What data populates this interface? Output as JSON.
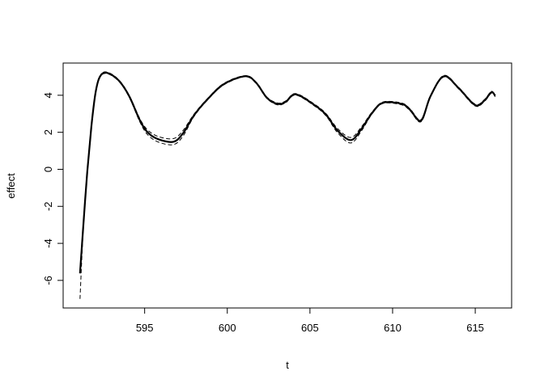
{
  "chart_data": {
    "type": "line",
    "title": "",
    "xlabel": "t",
    "ylabel": "effect",
    "xlim": [
      590.07,
      617.2
    ],
    "ylim": [
      -7.49,
      5.74
    ],
    "xticks": [
      595,
      600,
      605,
      610,
      615
    ],
    "yticks": [
      -6,
      -4,
      -2,
      0,
      2,
      4
    ],
    "grid": false,
    "legend": "none",
    "x": [
      591.09,
      591.29,
      591.53,
      591.78,
      592.02,
      592.27,
      592.68,
      593.42,
      594.07,
      594.72,
      595.21,
      595.87,
      596.76,
      597.34,
      597.99,
      598.81,
      599.79,
      601.09,
      601.75,
      602.4,
      603.05,
      603.54,
      604.15,
      605.34,
      606.0,
      606.65,
      607.47,
      608.12,
      608.77,
      609.43,
      610.56,
      611.06,
      611.72,
      612.29,
      613.1,
      614.0,
      614.99,
      615.56,
      615.97,
      616.21
    ],
    "series": [
      {
        "role": "fit",
        "style": "solid",
        "values": [
          -5.62,
          -3.06,
          -0.13,
          2.33,
          4.08,
          4.96,
          5.22,
          4.81,
          3.94,
          2.63,
          1.97,
          1.61,
          1.49,
          1.97,
          2.92,
          3.79,
          4.6,
          5.03,
          4.67,
          3.86,
          3.53,
          3.65,
          4.05,
          3.43,
          2.92,
          2.11,
          1.58,
          2.19,
          3.06,
          3.6,
          3.53,
          3.21,
          2.63,
          3.94,
          5.03,
          4.38,
          3.47,
          3.72,
          4.16,
          3.97
        ]
      },
      {
        "role": "upper",
        "style": "dashed",
        "values": [
          -5.45,
          -2.95,
          -0.05,
          2.4,
          4.13,
          5.0,
          5.26,
          4.85,
          3.99,
          2.72,
          2.1,
          1.76,
          1.66,
          2.12,
          2.98,
          3.83,
          4.64,
          5.06,
          4.71,
          3.9,
          3.58,
          3.7,
          4.09,
          3.48,
          2.98,
          2.22,
          1.72,
          2.3,
          3.11,
          3.64,
          3.58,
          3.26,
          2.69,
          3.98,
          5.07,
          4.42,
          3.52,
          3.77,
          4.21,
          4.02
        ]
      },
      {
        "role": "lower",
        "style": "dashed",
        "values": [
          -7.0,
          -3.2,
          -0.22,
          2.26,
          4.03,
          4.92,
          5.18,
          4.77,
          3.89,
          2.54,
          1.84,
          1.46,
          1.34,
          1.82,
          2.86,
          3.75,
          4.56,
          5.0,
          4.63,
          3.82,
          3.48,
          3.6,
          4.01,
          3.38,
          2.86,
          2.0,
          1.42,
          2.08,
          3.01,
          3.56,
          3.48,
          3.16,
          2.57,
          3.9,
          4.99,
          4.34,
          3.42,
          3.67,
          4.11,
          3.92
        ]
      }
    ]
  }
}
